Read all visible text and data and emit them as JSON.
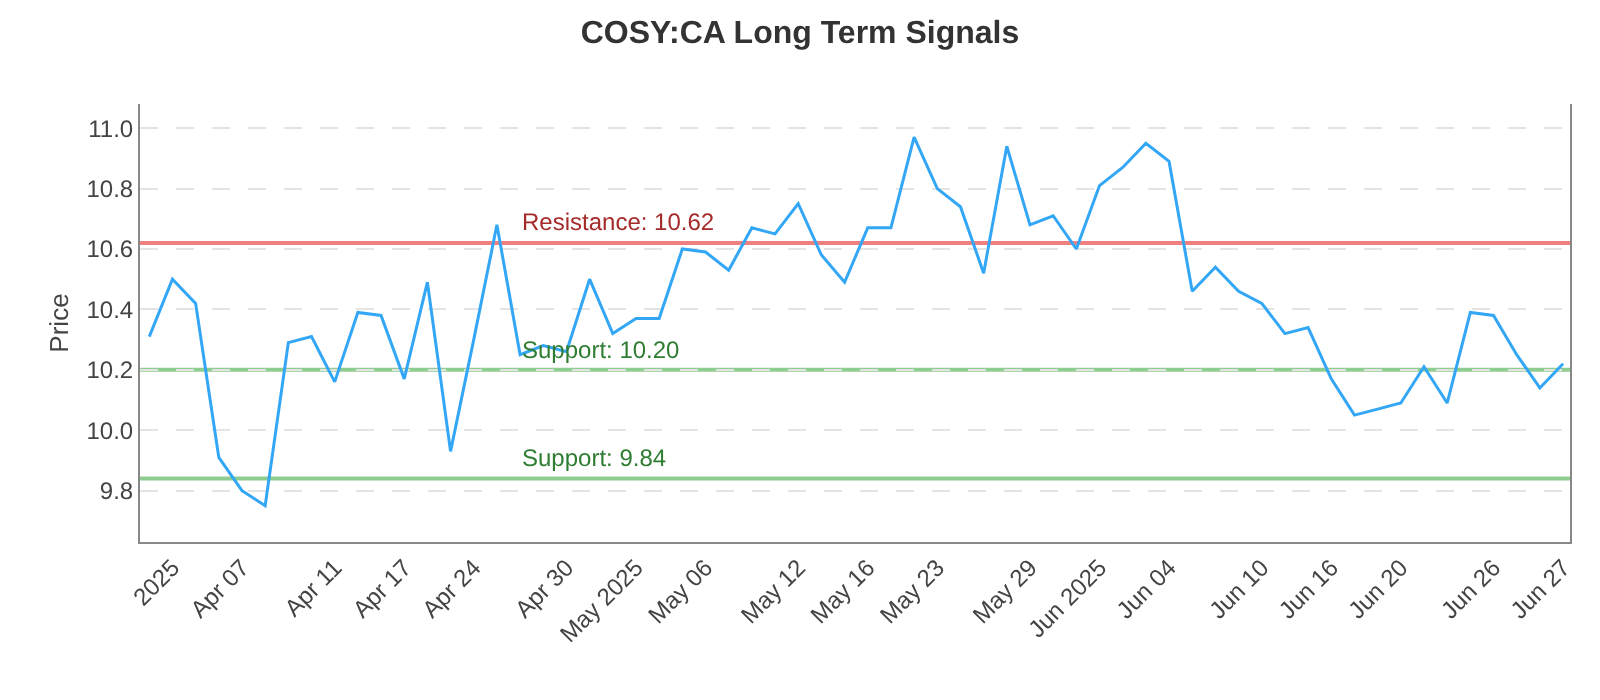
{
  "chart_data": {
    "type": "line",
    "title": "COSY:CA Long Term Signals",
    "ylabel": "Price",
    "categories": [
      null,
      "2025",
      null,
      null,
      "Apr 07",
      null,
      null,
      null,
      "Apr 11",
      null,
      null,
      "Apr 17",
      null,
      null,
      "Apr 24",
      null,
      null,
      null,
      "Apr 30",
      null,
      null,
      "May 2025",
      null,
      null,
      "May 06",
      null,
      null,
      null,
      "May 12",
      null,
      null,
      "May 16",
      null,
      null,
      "May 23",
      null,
      null,
      null,
      "May 29",
      null,
      null,
      "Jun 2025",
      null,
      null,
      "Jun 04",
      null,
      null,
      null,
      "Jun 10",
      null,
      null,
      "Jun 16",
      null,
      null,
      "Jun 20",
      null,
      null,
      null,
      "Jun 26",
      null,
      null,
      "Jun 27"
    ],
    "series": [
      {
        "color": "#33a7f5",
        "values": [
          10.31,
          10.5,
          10.42,
          9.91,
          9.8,
          9.75,
          10.29,
          10.31,
          10.16,
          10.39,
          10.38,
          10.17,
          10.49,
          9.93,
          10.3,
          10.68,
          10.25,
          10.28,
          10.26,
          10.5,
          10.32,
          10.37,
          10.37,
          10.6,
          10.59,
          10.53,
          10.67,
          10.65,
          10.75,
          10.58,
          10.49,
          10.67,
          10.67,
          10.97,
          10.8,
          10.74,
          10.52,
          10.94,
          10.68,
          10.71,
          10.6,
          10.81,
          10.87,
          10.95,
          10.89,
          10.46,
          10.54,
          10.46,
          10.42,
          10.32,
          10.34,
          10.17,
          10.05,
          10.07,
          10.09,
          10.21,
          10.09,
          10.39,
          10.38,
          10.25,
          10.14,
          10.22
        ]
      }
    ],
    "ylim": [
      9.63,
      11.08
    ],
    "yticks": [
      9.8,
      {
        "value": 10,
        "label": "10.0"
      },
      10.2,
      10.4,
      10.6,
      10.8,
      {
        "value": 11,
        "label": "11.0"
      }
    ],
    "grid": "y",
    "legend": false,
    "marker": "none",
    "line_style": "solid",
    "ref_lines": [
      {
        "axis": "y",
        "value": 10.62,
        "label": "Resistance: 10.62",
        "color": "#f08080"
      },
      {
        "axis": "y",
        "value": 10.2,
        "label": "Support: 10.20",
        "color": "#8fcc8f"
      },
      {
        "axis": "y",
        "value": 9.84,
        "label": "Support: 9.84",
        "color": "#8fcc8f"
      }
    ]
  }
}
